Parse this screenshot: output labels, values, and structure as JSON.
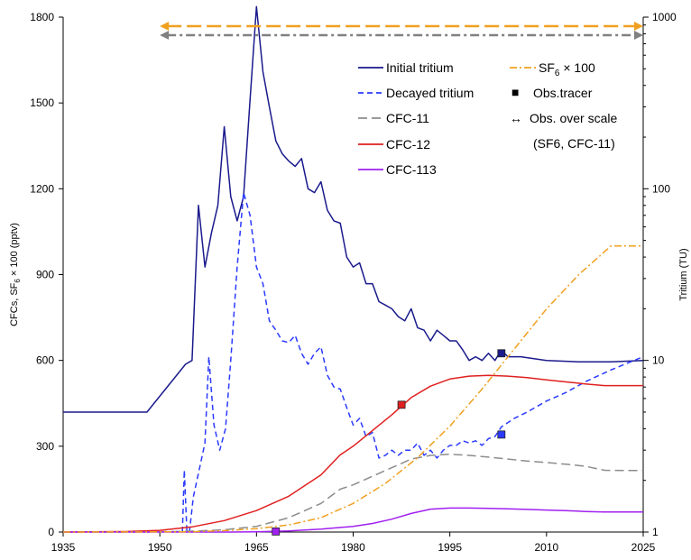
{
  "chart_data": {
    "type": "line",
    "xlabel": "",
    "ylabel_left": "CFCs, SF",
    "ylabel_left_sub": "6",
    "ylabel_left_tail": " × 100 (pptv)",
    "ylabel_right": "Tritium (TU)",
    "xlim": [
      1935,
      2025
    ],
    "ylim_left": [
      0,
      1800
    ],
    "ylim_right": [
      1,
      1000
    ],
    "yscale_right": "log",
    "x_ticks": [
      "1935",
      "1950",
      "1965",
      "1980",
      "1995",
      "2010",
      "2025"
    ],
    "y_ticks_left": [
      "0",
      "300",
      "600",
      "900",
      "1200",
      "1500",
      "1800"
    ],
    "y_ticks_right": [
      "1",
      "10",
      "100",
      "1000"
    ],
    "colors": {
      "initial_tritium": "#1a1a8c",
      "decayed_tritium": "#2a3aff",
      "cfc11": "#8c8c8c",
      "cfc12": "#e02020",
      "cfc113": "#a020f0",
      "sf6": "#f0a020",
      "obs_over_scale_sf6": "#f0a020",
      "obs_over_scale_cfc11": "#808080"
    },
    "legend": {
      "initial_tritium": "Initial tritium",
      "decayed_tritium": "Decayed tritium",
      "cfc11": "CFC-11",
      "cfc12": "CFC-12",
      "cfc113": "CFC-113",
      "sf6_main": "SF",
      "sf6_sub": "6",
      "sf6_tail": " × 100",
      "obs_tracer": "Obs.tracer",
      "obs_over_scale": "Obs. over scale",
      "obs_over_scale_note": "(SF6, CFC-11)",
      "marker_square": "■",
      "marker_arrow": "↔"
    },
    "series": [
      {
        "key": "initial_tritium",
        "name": "Initial tritium",
        "axis": "right",
        "style": "solid",
        "x": [
          1935,
          1948,
          1954,
          1955,
          1956,
          1957,
          1958,
          1959,
          1960,
          1961,
          1962,
          1963,
          1964,
          1965,
          1966,
          1967,
          1968,
          1969,
          1970,
          1971,
          1972,
          1973,
          1974,
          1975,
          1976,
          1977,
          1978,
          1979,
          1980,
          1981,
          1982,
          1983,
          1984,
          1985,
          1986,
          1987,
          1988,
          1989,
          1990,
          1991,
          1992,
          1993,
          1994,
          1995,
          1996,
          1997,
          1998,
          1999,
          2000,
          2001,
          2002,
          2003,
          2004,
          2005,
          2006,
          2010,
          2015,
          2020,
          2025
        ],
        "y": [
          5,
          5,
          9.5,
          10,
          80,
          35,
          55,
          80,
          230,
          90,
          65,
          90,
          330,
          1150,
          480,
          300,
          190,
          160,
          145,
          135,
          150,
          100,
          95,
          110,
          75,
          65,
          63,
          40,
          35,
          37,
          28,
          28,
          22,
          21,
          20,
          18,
          17,
          20,
          15.5,
          15,
          13,
          15,
          14,
          13,
          13,
          11.5,
          10,
          10.5,
          10,
          11,
          10,
          11.5,
          10.5,
          10.5,
          10.5,
          10,
          9.8,
          9.8,
          10
        ]
      },
      {
        "key": "decayed_tritium",
        "name": "Decayed tritium",
        "axis": "right",
        "style": "dashed",
        "x": [
          1953.5,
          1953.8,
          1954.2,
          1954.6,
          1955.2,
          1956.0,
          1957.0,
          1957.6,
          1958.4,
          1959.3,
          1960.2,
          1961.0,
          1962.0,
          1963.0,
          1964.0,
          1965.0,
          1966.0,
          1967.0,
          1968.0,
          1969.0,
          1970.0,
          1971.0,
          1972.0,
          1973.0,
          1974.0,
          1975.0,
          1976.0,
          1977.0,
          1978.0,
          1979.0,
          1980.0,
          1981.0,
          1982.0,
          1983.0,
          1984.0,
          1985.0,
          1986.0,
          1987.0,
          1988.0,
          1989.0,
          1990.0,
          1991.0,
          1992.0,
          1993.0,
          1994.0,
          1995.0,
          1996.0,
          1997.0,
          1998.0,
          1999.0,
          2000.0,
          2001.0,
          2002.0,
          2003.0,
          2005.0,
          2007.0,
          2010.0,
          2013.0,
          2016.0,
          2020.0,
          2025.0
        ],
        "y": [
          1,
          2.3,
          1,
          1,
          1.6,
          2.2,
          3.3,
          10.5,
          4.2,
          3,
          4,
          10,
          35,
          95,
          70,
          35,
          28,
          17,
          15,
          13,
          12.7,
          14,
          11,
          9.5,
          11,
          12,
          8.2,
          7,
          6.8,
          5.3,
          4.2,
          4.6,
          3.6,
          3.8,
          2.7,
          2.8,
          3,
          2.8,
          3,
          3,
          3.3,
          2.8,
          3,
          2.7,
          3,
          3.2,
          3.2,
          3.4,
          3.3,
          3.4,
          3.2,
          3.5,
          3.6,
          4.1,
          4.6,
          5,
          5.8,
          6.5,
          7.5,
          8.8,
          10.5
        ]
      },
      {
        "key": "cfc11",
        "name": "CFC-11",
        "axis": "left",
        "style": "longdash",
        "x": [
          1935,
          1945,
          1950,
          1955,
          1960,
          1965,
          1970,
          1975,
          1978,
          1980,
          1983,
          1986,
          1989,
          1992,
          1995,
          1998,
          2001,
          2004,
          2007,
          2010,
          2013,
          2016,
          2019,
          2022,
          2025
        ],
        "y": [
          0,
          0,
          1,
          3,
          8,
          20,
          50,
          100,
          150,
          165,
          195,
          225,
          255,
          268,
          272,
          268,
          262,
          255,
          248,
          243,
          237,
          230,
          216,
          215,
          215
        ]
      },
      {
        "key": "cfc12",
        "name": "CFC-12",
        "axis": "left",
        "style": "solid",
        "x": [
          1935,
          1945,
          1950,
          1955,
          1960,
          1965,
          1970,
          1975,
          1978,
          1980,
          1983,
          1986,
          1989,
          1992,
          1995,
          1998,
          2001,
          2004,
          2007,
          2010,
          2013,
          2016,
          2019,
          2022,
          2025
        ],
        "y": [
          0,
          2,
          6,
          18,
          40,
          75,
          125,
          200,
          270,
          300,
          355,
          410,
          470,
          510,
          535,
          545,
          548,
          545,
          540,
          532,
          525,
          518,
          512,
          512,
          512
        ]
      },
      {
        "key": "cfc113",
        "name": "CFC-113",
        "axis": "left",
        "style": "solid",
        "x": [
          1935,
          1960,
          1965,
          1970,
          1975,
          1980,
          1983,
          1986,
          1989,
          1992,
          1995,
          1998,
          2001,
          2004,
          2007,
          2010,
          2013,
          2016,
          2019,
          2022,
          2025
        ],
        "y": [
          0,
          0,
          1,
          4,
          10,
          20,
          30,
          45,
          65,
          80,
          84,
          84,
          83,
          81,
          79,
          77,
          75,
          72,
          70,
          70,
          70
        ]
      },
      {
        "key": "sf6",
        "name": "SF6 × 100",
        "axis": "left",
        "style": "dashdot",
        "x": [
          1935,
          1955,
          1960,
          1965,
          1970,
          1975,
          1980,
          1985,
          1990,
          1995,
          2000,
          2005,
          2010,
          2015,
          2020,
          2021,
          2025
        ],
        "y": [
          0,
          1,
          5,
          12,
          25,
          50,
          100,
          170,
          260,
          370,
          500,
          640,
          780,
          900,
          1000,
          1000,
          1000
        ]
      }
    ],
    "obs_tracers": [
      {
        "series": "initial_tritium",
        "axis": "right",
        "x": 2003,
        "y": 11
      },
      {
        "series": "decayed_tritium",
        "axis": "right",
        "x": 2003,
        "y": 3.7
      },
      {
        "series": "cfc12",
        "axis": "left",
        "x": 1987.5,
        "y": 445
      },
      {
        "series": "cfc113",
        "axis": "left",
        "x": 1968,
        "y": 2
      }
    ],
    "over_scale_arrows": [
      {
        "series": "sf6",
        "style": "dashed"
      },
      {
        "series": "cfc11",
        "style": "dashdot"
      }
    ],
    "grid": false,
    "legend_position": "top-right"
  }
}
